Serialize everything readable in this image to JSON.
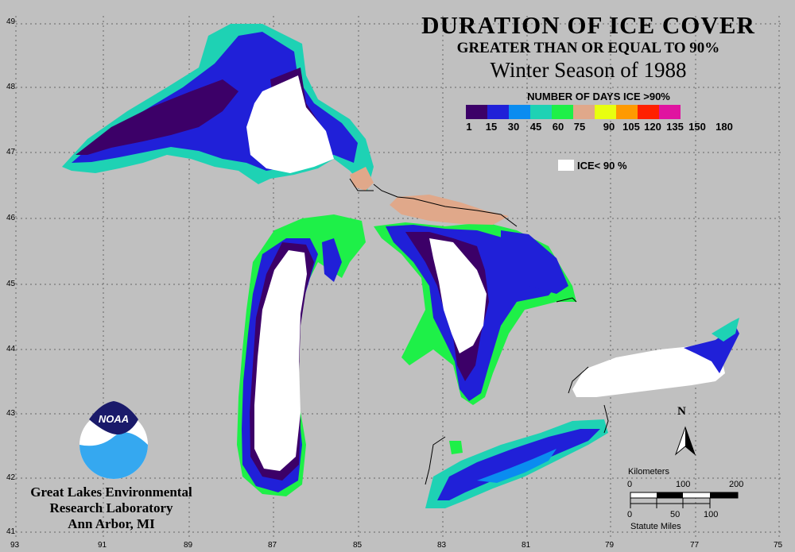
{
  "title": {
    "line1": "DURATION OF ICE COVER",
    "line2": "GREATER THAN OR EQUAL TO 90%",
    "line3": "Winter Season of 1988"
  },
  "legend": {
    "title": "NUMBER OF DAYS ICE >90%",
    "colors": [
      "#3c0068",
      "#2020d8",
      "#0a8cf0",
      "#1ed2b4",
      "#1ef048",
      "#e0a88a",
      "#e8ff10",
      "#ff9a00",
      "#ff2000",
      "#e014a0"
    ],
    "ticks": [
      "1",
      "15",
      "30",
      "45",
      "60",
      "75",
      "90",
      "105",
      "120",
      "135",
      "150",
      "180"
    ],
    "ice_label": "ICE< 90 %"
  },
  "axes": {
    "longitudes": [
      "93",
      "91",
      "89",
      "87",
      "85",
      "83",
      "81",
      "79",
      "77",
      "75"
    ],
    "latitudes": [
      "49",
      "48",
      "47",
      "46",
      "45",
      "44",
      "43",
      "42",
      "41"
    ]
  },
  "lab": {
    "line1": "Great Lakes Environmental",
    "line2": "Research Laboratory",
    "line3": "Ann Arbor, MI"
  },
  "logo_text": "NOAA",
  "north_label": "N",
  "scale": {
    "km_label": "Kilometers",
    "km_ticks": [
      "0",
      "100",
      "200"
    ],
    "mi_label": "Statute Miles",
    "mi_ticks": [
      "0",
      "50",
      "100"
    ]
  }
}
